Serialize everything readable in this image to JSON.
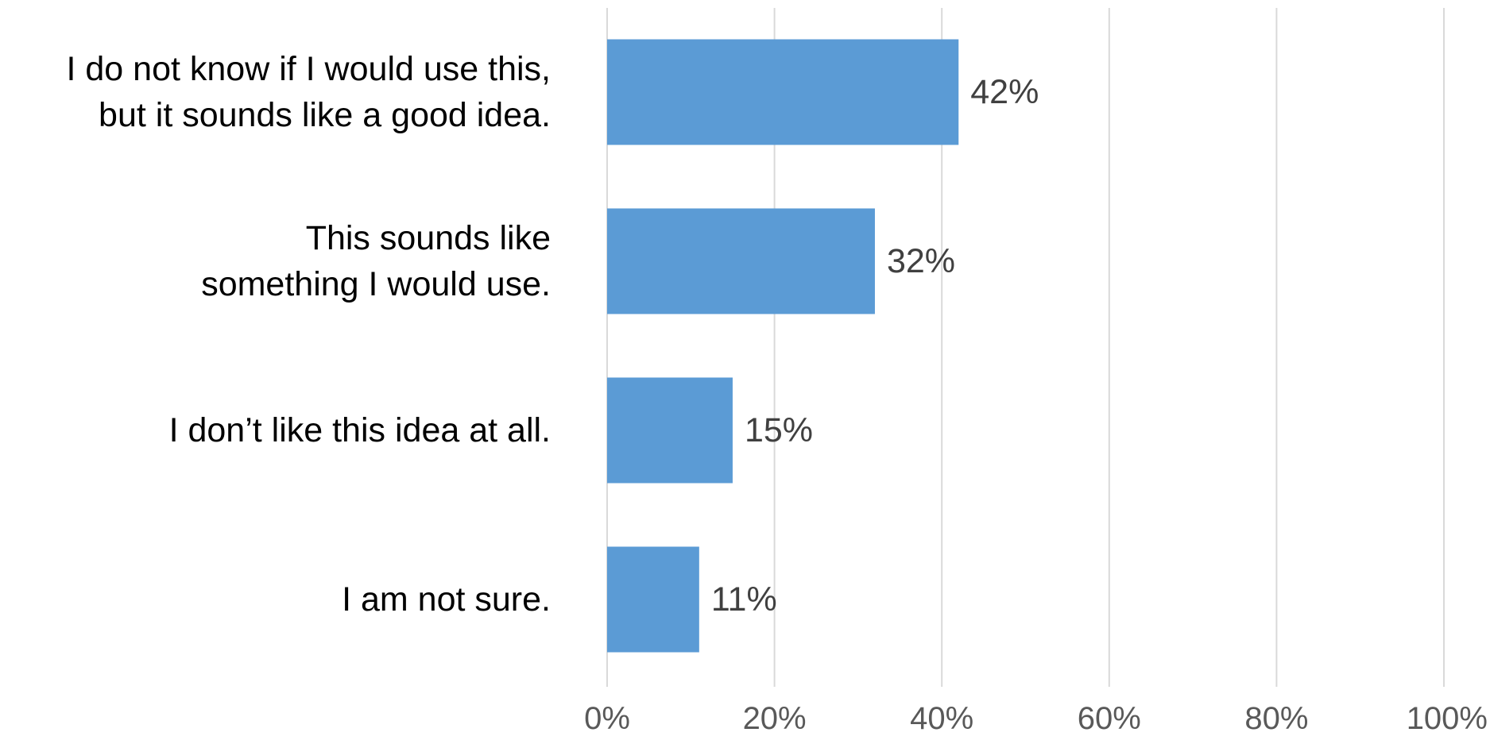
{
  "chart_data": {
    "type": "bar",
    "orientation": "horizontal",
    "categories": [
      [
        "I do not know if I would use this,",
        "but it sounds like a good idea."
      ],
      [
        "This sounds like",
        "something I would use."
      ],
      [
        "I don’t like this idea at all."
      ],
      [
        "I am not sure."
      ]
    ],
    "values": [
      42,
      32,
      15,
      11
    ],
    "value_labels": [
      "42%",
      "32%",
      "15%",
      "11%"
    ],
    "xlim": [
      0,
      100
    ],
    "x_ticks": [
      0,
      20,
      40,
      60,
      80,
      100
    ],
    "x_tick_labels": [
      "0%",
      "20%",
      "40%",
      "60%",
      "80%",
      "100%"
    ],
    "grid": "vertical",
    "legend": "none",
    "bar_color": "#5b9bd5",
    "gridline_color": "#d9d9d9",
    "title": "",
    "xlabel": "",
    "ylabel": ""
  }
}
